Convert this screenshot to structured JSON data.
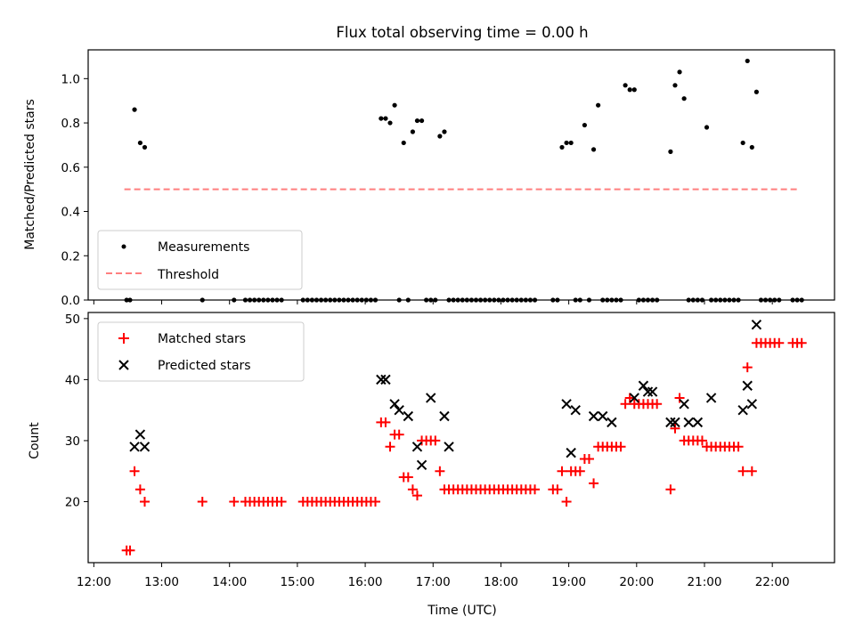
{
  "colors": {
    "measurement": "#000000",
    "threshold": "#ff7f7f",
    "matched": "#ff0000",
    "predicted": "#000000",
    "axes": "#000000"
  },
  "chart_data": [
    {
      "id": "ratio",
      "type": "scatter",
      "title": "Flux total observing time = 0.00 h",
      "xlabel": "",
      "ylabel": "Matched/Predicted stars",
      "xlim": [
        "11:55",
        "22:55"
      ],
      "ylim": [
        0,
        1.13
      ],
      "yticks": [
        "0.0",
        "0.2",
        "0.4",
        "0.6",
        "0.8",
        "1.0"
      ],
      "legend": {
        "placement": "lower-left",
        "entries": [
          "Measurements",
          "Threshold"
        ]
      },
      "threshold": {
        "name": "Threshold",
        "x": [
          "12:27",
          "22:22"
        ],
        "y": 0.5
      },
      "measurements": {
        "name": "Measurements",
        "x": [
          "12:29",
          "12:32",
          "12:36",
          "12:41",
          "12:45",
          "13:36",
          "14:04",
          "14:14",
          "14:18",
          "14:22",
          "14:26",
          "14:30",
          "14:34",
          "14:38",
          "14:42",
          "14:46",
          "15:05",
          "15:09",
          "15:13",
          "15:17",
          "15:21",
          "15:25",
          "15:29",
          "15:33",
          "15:37",
          "15:41",
          "15:45",
          "15:49",
          "15:53",
          "15:57",
          "16:01",
          "16:05",
          "16:09",
          "16:14",
          "16:18",
          "16:22",
          "16:26",
          "16:30",
          "16:34",
          "16:38",
          "16:42",
          "16:46",
          "16:50",
          "16:54",
          "16:58",
          "17:02",
          "17:06",
          "17:10",
          "17:14",
          "17:18",
          "17:22",
          "17:26",
          "17:30",
          "17:34",
          "17:38",
          "17:42",
          "17:46",
          "17:50",
          "17:54",
          "17:58",
          "18:02",
          "18:06",
          "18:10",
          "18:14",
          "18:18",
          "18:22",
          "18:26",
          "18:30",
          "18:46",
          "18:50",
          "18:54",
          "18:58",
          "19:02",
          "19:06",
          "19:10",
          "19:14",
          "19:18",
          "19:22",
          "19:26",
          "19:30",
          "19:34",
          "19:38",
          "19:42",
          "19:46",
          "19:50",
          "19:54",
          "19:58",
          "20:02",
          "20:06",
          "20:10",
          "20:14",
          "20:18",
          "20:30",
          "20:34",
          "20:38",
          "20:42",
          "20:46",
          "20:50",
          "20:54",
          "20:58",
          "21:02",
          "21:06",
          "21:10",
          "21:14",
          "21:18",
          "21:22",
          "21:26",
          "21:30",
          "21:34",
          "21:38",
          "21:42",
          "21:46",
          "21:50",
          "21:54",
          "21:58",
          "22:02",
          "22:06",
          "22:18",
          "22:22",
          "22:26"
        ],
        "y": [
          0,
          0,
          0.86,
          0.71,
          0.69,
          0,
          0,
          0,
          0,
          0,
          0,
          0,
          0,
          0,
          0,
          0,
          0,
          0,
          0,
          0,
          0,
          0,
          0,
          0,
          0,
          0,
          0,
          0,
          0,
          0,
          0,
          0,
          0,
          0.82,
          0.82,
          0.8,
          0.88,
          0,
          0.71,
          0,
          0.76,
          0.81,
          0.81,
          0,
          0,
          0,
          0.74,
          0.76,
          0,
          0,
          0,
          0,
          0,
          0,
          0,
          0,
          0,
          0,
          0,
          0,
          0,
          0,
          0,
          0,
          0,
          0,
          0,
          0,
          0,
          0,
          0.69,
          0.71,
          0.71,
          0,
          0,
          0.79,
          0,
          0.68,
          0.88,
          0,
          0,
          0,
          0,
          0,
          0.97,
          0.95,
          0.95,
          0,
          0,
          0,
          0,
          0,
          0.67,
          0.97,
          1.03,
          0.91,
          0,
          0,
          0,
          0,
          0.78,
          0,
          0,
          0,
          0,
          0,
          0,
          0,
          0.71,
          1.08,
          0.69,
          0.94,
          0,
          0,
          0,
          0,
          0,
          0,
          0,
          0
        ]
      }
    },
    {
      "id": "counts",
      "type": "scatter",
      "title": "",
      "xlabel": "Time (UTC)",
      "ylabel": "Count",
      "xlim": [
        "11:55",
        "22:55"
      ],
      "ylim": [
        10,
        51
      ],
      "yticks": [
        "20",
        "30",
        "40",
        "50"
      ],
      "xticks": [
        "12:00",
        "13:00",
        "14:00",
        "15:00",
        "16:00",
        "17:00",
        "18:00",
        "19:00",
        "20:00",
        "21:00",
        "22:00"
      ],
      "legend": {
        "placement": "upper-left",
        "entries": [
          "Matched stars",
          "Predicted stars"
        ]
      },
      "matched": {
        "name": "Matched stars",
        "x": [
          "12:29",
          "12:32",
          "12:36",
          "12:41",
          "12:45",
          "13:36",
          "14:04",
          "14:14",
          "14:18",
          "14:22",
          "14:26",
          "14:30",
          "14:34",
          "14:38",
          "14:42",
          "14:46",
          "15:05",
          "15:09",
          "15:13",
          "15:17",
          "15:21",
          "15:25",
          "15:29",
          "15:33",
          "15:37",
          "15:41",
          "15:45",
          "15:49",
          "15:53",
          "15:57",
          "16:01",
          "16:05",
          "16:09",
          "16:14",
          "16:18",
          "16:22",
          "16:26",
          "16:30",
          "16:34",
          "16:38",
          "16:42",
          "16:46",
          "16:50",
          "16:54",
          "16:58",
          "17:02",
          "17:06",
          "17:10",
          "17:14",
          "17:18",
          "17:22",
          "17:26",
          "17:30",
          "17:34",
          "17:38",
          "17:42",
          "17:46",
          "17:50",
          "17:54",
          "17:58",
          "18:02",
          "18:06",
          "18:10",
          "18:14",
          "18:18",
          "18:22",
          "18:26",
          "18:30",
          "18:46",
          "18:50",
          "18:54",
          "18:58",
          "19:02",
          "19:06",
          "19:10",
          "19:14",
          "19:18",
          "19:22",
          "19:26",
          "19:30",
          "19:34",
          "19:38",
          "19:42",
          "19:46",
          "19:50",
          "19:54",
          "19:58",
          "20:02",
          "20:06",
          "20:10",
          "20:14",
          "20:18",
          "20:30",
          "20:34",
          "20:38",
          "20:42",
          "20:46",
          "20:50",
          "20:54",
          "20:58",
          "21:02",
          "21:06",
          "21:10",
          "21:14",
          "21:18",
          "21:22",
          "21:26",
          "21:30",
          "21:34",
          "21:38",
          "21:42",
          "21:46",
          "21:50",
          "21:54",
          "21:58",
          "22:02",
          "22:06",
          "22:18",
          "22:22",
          "22:26"
        ],
        "y": [
          12,
          12,
          25,
          22,
          20,
          20,
          20,
          20,
          20,
          20,
          20,
          20,
          20,
          20,
          20,
          20,
          20,
          20,
          20,
          20,
          20,
          20,
          20,
          20,
          20,
          20,
          20,
          20,
          20,
          20,
          20,
          20,
          20,
          33,
          33,
          29,
          31,
          31,
          24,
          24,
          22,
          21,
          30,
          30,
          30,
          30,
          25,
          22,
          22,
          22,
          22,
          22,
          22,
          22,
          22,
          22,
          22,
          22,
          22,
          22,
          22,
          22,
          22,
          22,
          22,
          22,
          22,
          22,
          22,
          22,
          25,
          20,
          25,
          25,
          25,
          27,
          27,
          23,
          29,
          29,
          29,
          29,
          29,
          29,
          36,
          37,
          36,
          36,
          36,
          36,
          36,
          36,
          22,
          32,
          37,
          30,
          30,
          30,
          30,
          30,
          29,
          29,
          29,
          29,
          29,
          29,
          29,
          29,
          25,
          42,
          25,
          46,
          46,
          46,
          46,
          46,
          46,
          46,
          46,
          46
        ]
      },
      "predicted": {
        "name": "Predicted stars",
        "x": [
          "12:36",
          "12:41",
          "12:45",
          "16:14",
          "16:18",
          "16:26",
          "16:30",
          "16:38",
          "16:46",
          "16:50",
          "16:58",
          "17:10",
          "17:14",
          "18:58",
          "19:02",
          "19:06",
          "19:22",
          "19:30",
          "19:38",
          "19:58",
          "20:06",
          "20:10",
          "20:14",
          "20:30",
          "20:34",
          "20:42",
          "20:46",
          "20:54",
          "21:06",
          "21:34",
          "21:38",
          "21:42",
          "21:46"
        ],
        "y": [
          29,
          31,
          29,
          40,
          40,
          36,
          35,
          34,
          29,
          26,
          37,
          34,
          29,
          36,
          28,
          35,
          34,
          34,
          33,
          37,
          39,
          38,
          38,
          33,
          33,
          36,
          33,
          33,
          37,
          35,
          39,
          36,
          49
        ]
      }
    }
  ]
}
